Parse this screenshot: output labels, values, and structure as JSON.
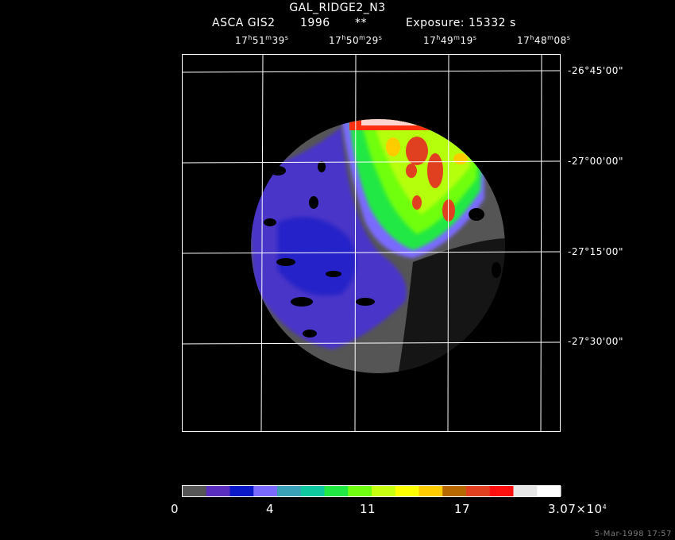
{
  "header": {
    "title": "GAL_RIDGE2_N3",
    "mission": "ASCA GIS2",
    "year": "1996",
    "marker": "**",
    "exposure": "Exposure: 15332 s"
  },
  "ra_labels": [
    {
      "h": "17",
      "m": "51",
      "s": "39"
    },
    {
      "h": "17",
      "m": "50",
      "s": "29"
    },
    {
      "h": "17",
      "m": "49",
      "s": "19"
    },
    {
      "h": "17",
      "m": "48",
      "s": "08"
    }
  ],
  "dec_labels": [
    "-26°45'00\"",
    "-27°00'00\"",
    "-27°15'00\"",
    "-27°30'00\""
  ],
  "colorbar": {
    "colors": [
      "#555555",
      "#5a2fbf",
      "#0a18c8",
      "#7a6aff",
      "#3aa0b8",
      "#10c8a0",
      "#22e844",
      "#70ff10",
      "#c8ff10",
      "#ffff00",
      "#ffcc00",
      "#b86800",
      "#e04020",
      "#ff1010",
      "#e6e6e6",
      "#ffffff"
    ],
    "labels": [
      "0",
      "4",
      "11",
      "17"
    ],
    "max_label": "3.07×10",
    "max_exp": "4"
  },
  "timestamp": "5-Mar-1998 17:57"
}
